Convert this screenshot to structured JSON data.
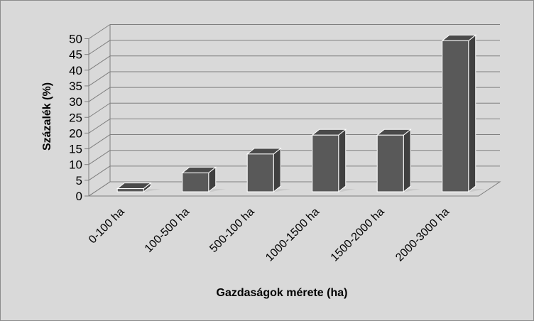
{
  "chart_data": {
    "type": "bar",
    "style": "3d-column",
    "categories": [
      "0-100 ha",
      "100-500 ha",
      "500-100 ha",
      "1000-1500 ha",
      "1500-2000 ha",
      "2000-3000 ha"
    ],
    "values": [
      1,
      6,
      12,
      18,
      18,
      48
    ],
    "title": "",
    "xlabel": "Gazdaságok mérete (ha)",
    "ylabel": "Százalék (%)",
    "ylim": [
      0,
      50
    ],
    "yticks": [
      0,
      5,
      10,
      15,
      20,
      25,
      30,
      35,
      40,
      45,
      50
    ],
    "grid": true,
    "legend": "none",
    "colors": {
      "bar_front": "#595959",
      "bar_side": "#404040",
      "bar_top": "#4a4a4a",
      "background": "#d9d9d9",
      "gridline": "#7f7f7f"
    }
  }
}
